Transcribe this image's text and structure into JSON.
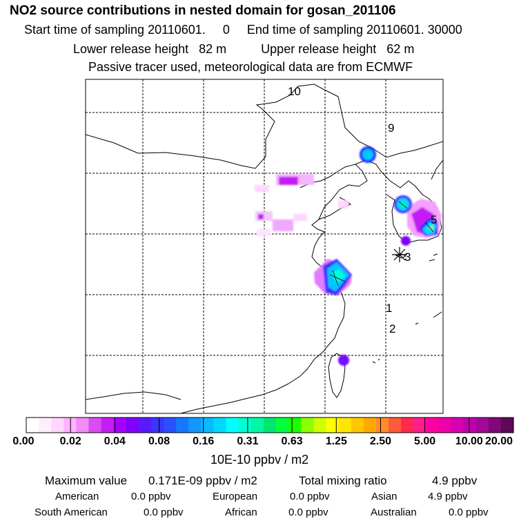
{
  "header": {
    "title": "NO2 source contributions in nested domain for gosan_201106",
    "start_label": "Start time of sampling 20110601.",
    "start_value": "0",
    "end_label": "End time of sampling 20110601. 30000",
    "lower_label": "Lower release height",
    "lower_value": "82 m",
    "upper_label": "Upper release height",
    "upper_value": "62 m",
    "note": "Passive tracer used, meteorological data are from ECMWF"
  },
  "map": {
    "trajectory_labels": [
      "10",
      "9",
      "5",
      "3",
      "1",
      "2"
    ],
    "receptor": "gosan",
    "grid": "dashed lat/lon lines"
  },
  "colorbar": {
    "labels": [
      "0.00",
      "0.02",
      "0.04",
      "0.08",
      "0.16",
      "0.31",
      "0.63",
      "1.25",
      "2.50",
      "5.00",
      "10.00",
      "20.00"
    ],
    "units": "10E-10 ppbv / m2",
    "colors": [
      "#ffffff",
      "#ffeeff",
      "#ffd6ff",
      "#ffb2ff",
      "#f08cf5",
      "#d84cf2",
      "#c31ef2",
      "#a400ff",
      "#8000ff",
      "#5a1aff",
      "#3a35ff",
      "#2a50ff",
      "#1678ff",
      "#1297ff",
      "#09baff",
      "#00d8ff",
      "#00ffff",
      "#00ffd2",
      "#00f7a4",
      "#00e670",
      "#00ff3c",
      "#18ff00",
      "#8cff00",
      "#cfff00",
      "#ffff00",
      "#ffe600",
      "#ffc800",
      "#ffaa00",
      "#ff8c28",
      "#ff5a3c",
      "#ff2a50",
      "#ff1e8c",
      "#ff00a0",
      "#ee00aa",
      "#d800b0",
      "#c000aa",
      "#a0089a",
      "#800878",
      "#600858"
    ]
  },
  "footer": {
    "max_label": "Maximum value",
    "max_value": "0.171E-09 ppbv / m2",
    "total_label": "Total mixing ratio",
    "total_value": "4.9 ppbv",
    "regions": [
      {
        "name": "American",
        "value": "0.0 ppbv"
      },
      {
        "name": "European",
        "value": "0.0 ppbv"
      },
      {
        "name": "Asian",
        "value": "4.9 ppbv"
      },
      {
        "name": "South American",
        "value": "0.0 ppbv"
      },
      {
        "name": "African",
        "value": "0.0 ppbv"
      },
      {
        "name": "Australian",
        "value": "0.0 ppbv"
      }
    ]
  }
}
